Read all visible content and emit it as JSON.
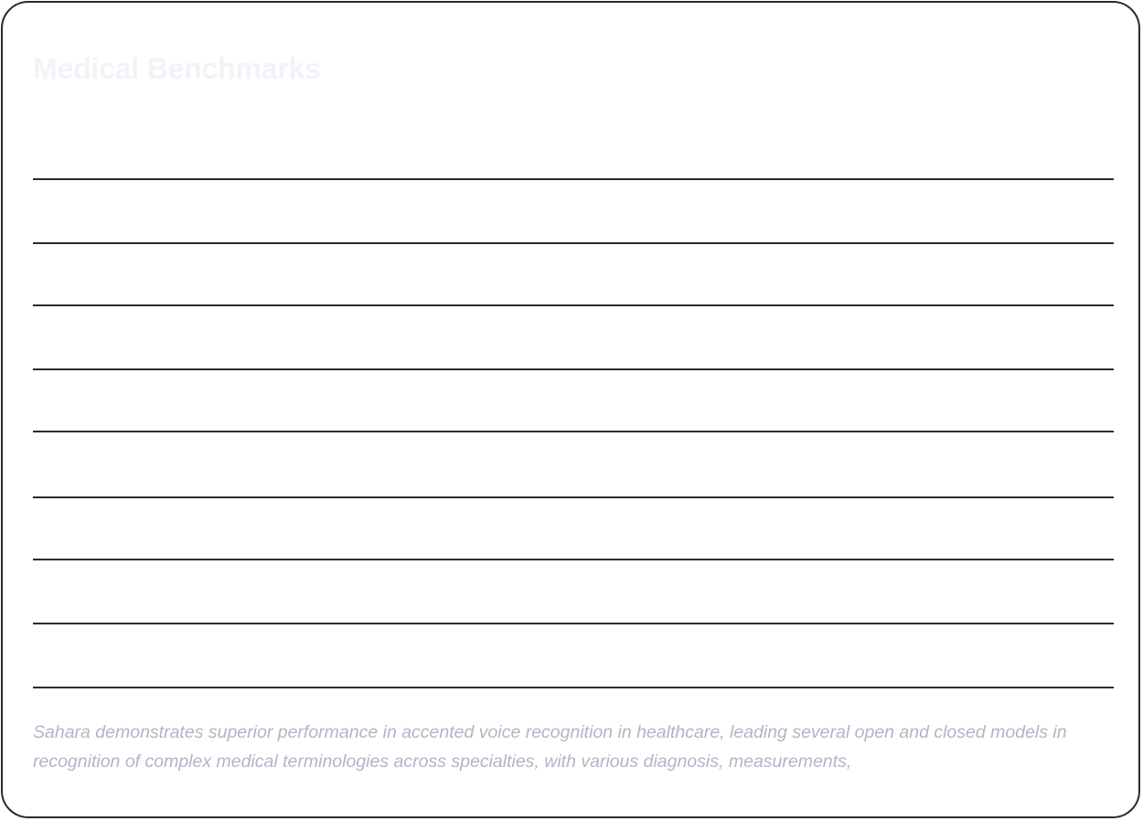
{
  "card": {
    "title": "Medical Benchmarks",
    "caption": "Sahara demonstrates superior performance in accented voice recognition in healthcare, leading several open and closed models in recognition of complex medical terminologies across specialties, with various diagnosis, measurements,"
  },
  "colors": {
    "border": "#2a2a35",
    "title_text": "#f2f3f8",
    "caption_text": "#b3b4c6",
    "background": "#ffffff"
  }
}
